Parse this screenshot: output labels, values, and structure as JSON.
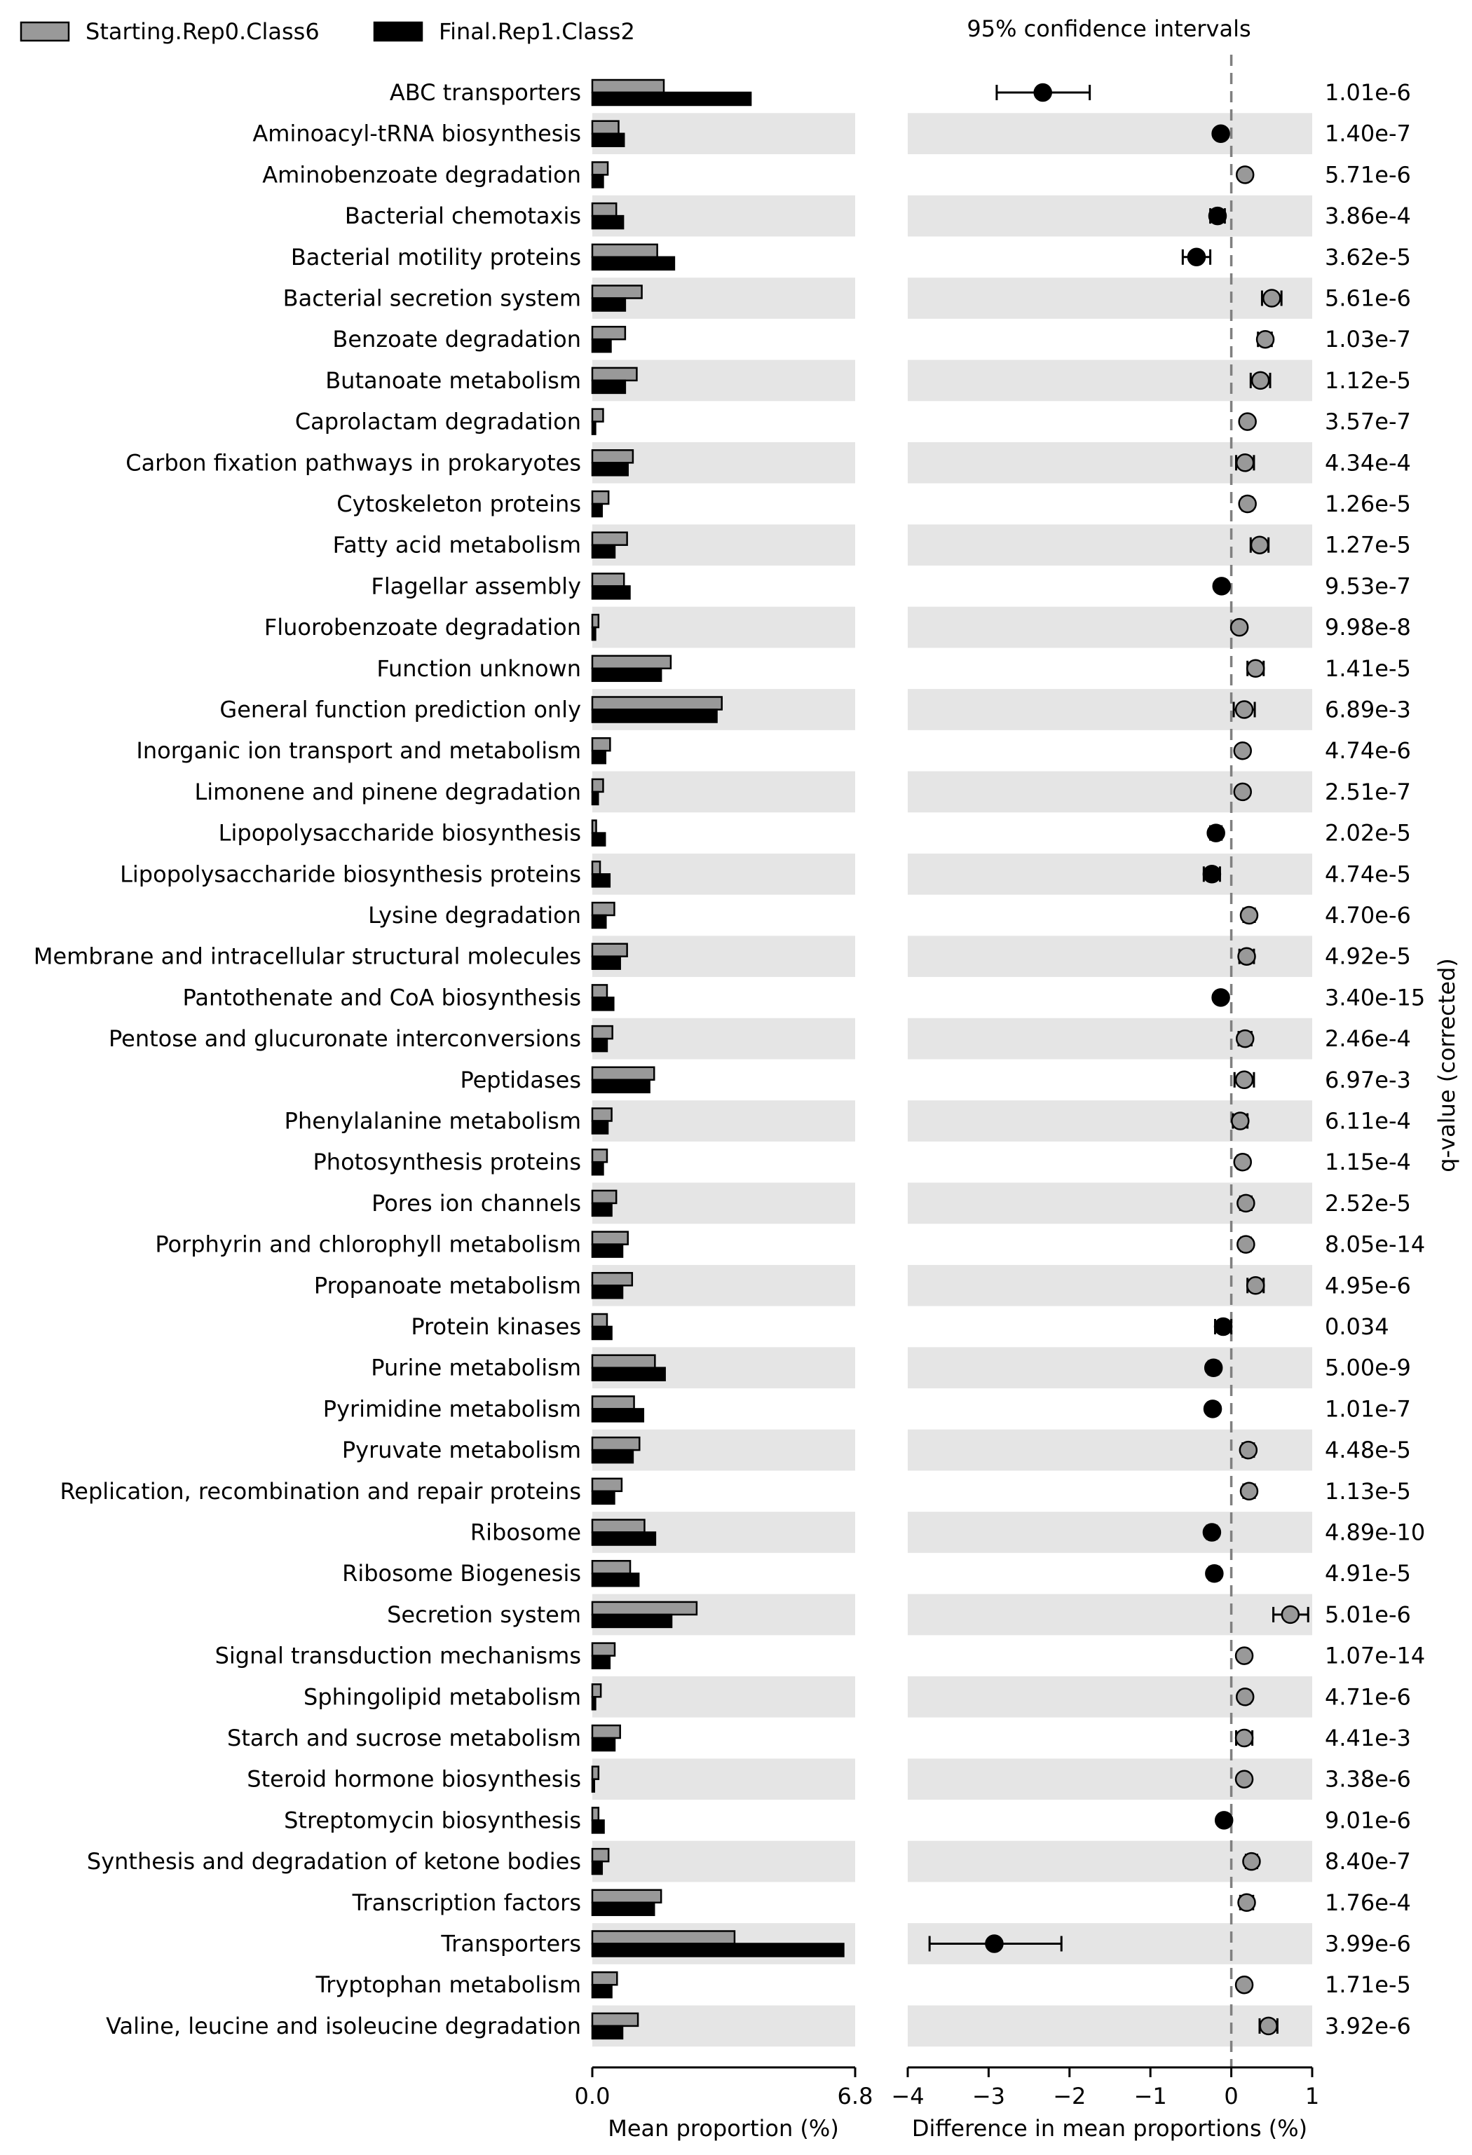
{
  "chart_data": {
    "type": "extended-error-bar",
    "legend": {
      "placement": "top-left",
      "entries": [
        {
          "name": "Starting.Rep0.Class6",
          "color": "#999999"
        },
        {
          "name": "Final.Rep1.Class2",
          "color": "#000000"
        }
      ]
    },
    "ci_title": "95% confidence intervals",
    "left_xlabel": "Mean proportion (%)",
    "right_xlabel": "Difference in mean proportions (%)",
    "qvalue_label": "q-value (corrected)",
    "left_xlim": [
      0.0,
      6.8
    ],
    "left_ticks": [
      "0.0",
      "6.8"
    ],
    "right_xlim": [
      -4,
      1
    ],
    "right_ticks": [
      -4,
      -3,
      -2,
      -1,
      0,
      1
    ],
    "right_tick_labels": [
      "−4",
      "−3",
      "−2",
      "−1",
      "0",
      "1"
    ],
    "colors": {
      "starting": "#999999",
      "final": "#000000",
      "band": "#e5e5e5",
      "zero_line": "#808080"
    },
    "categories": [
      "ABC transporters",
      "Aminoacyl-tRNA biosynthesis",
      "Aminobenzoate degradation",
      "Bacterial chemotaxis",
      "Bacterial motility proteins",
      "Bacterial secretion system",
      "Benzoate degradation",
      "Butanoate metabolism",
      "Caprolactam degradation",
      "Carbon fixation pathways in prokaryotes",
      "Cytoskeleton proteins",
      "Fatty acid metabolism",
      "Flagellar assembly",
      "Fluorobenzoate degradation",
      "Function unknown",
      "General function prediction only",
      "Inorganic ion transport and metabolism",
      "Limonene and pinene degradation",
      "Lipopolysaccharide biosynthesis",
      "Lipopolysaccharide biosynthesis proteins",
      "Lysine degradation",
      "Membrane and intracellular structural molecules",
      "Pantothenate and CoA biosynthesis",
      "Pentose and glucuronate interconversions",
      "Peptidases",
      "Phenylalanine metabolism",
      "Photosynthesis proteins",
      "Pores ion channels",
      "Porphyrin and chlorophyll metabolism",
      "Propanoate metabolism",
      "Protein kinases",
      "Purine metabolism",
      "Pyrimidine metabolism",
      "Pyruvate metabolism",
      "Replication, recombination and repair proteins",
      "Ribosome",
      "Ribosome Biogenesis",
      "Secretion system",
      "Signal transduction mechanisms",
      "Sphingolipid metabolism",
      "Starch and sucrose metabolism",
      "Steroid hormone biosynthesis",
      "Streptomycin biosynthesis",
      "Synthesis and degradation of ketone bodies",
      "Transcription factors",
      "Transporters",
      "Tryptophan metabolism",
      "Valine, leucine and isoleucine degradation"
    ],
    "series": [
      {
        "name": "Starting.Rep0.Class6",
        "values": [
          1.85,
          0.68,
          0.4,
          0.62,
          1.68,
          1.28,
          0.85,
          1.15,
          0.28,
          1.05,
          0.42,
          0.9,
          0.82,
          0.16,
          2.03,
          3.35,
          0.46,
          0.28,
          0.1,
          0.2,
          0.57,
          0.9,
          0.38,
          0.52,
          1.6,
          0.5,
          0.38,
          0.62,
          0.92,
          1.03,
          0.38,
          1.62,
          1.08,
          1.22,
          0.76,
          1.35,
          0.98,
          2.7,
          0.58,
          0.22,
          0.72,
          0.16,
          0.16,
          0.42,
          1.78,
          3.68,
          0.64,
          1.18
        ]
      },
      {
        "name": "Final.Rep1.Class2",
        "values": [
          4.1,
          0.82,
          0.28,
          0.8,
          2.12,
          0.85,
          0.48,
          0.85,
          0.08,
          0.92,
          0.25,
          0.58,
          0.97,
          0.08,
          1.78,
          3.22,
          0.34,
          0.15,
          0.33,
          0.45,
          0.35,
          0.72,
          0.55,
          0.38,
          1.48,
          0.4,
          0.28,
          0.5,
          0.78,
          0.78,
          0.5,
          1.88,
          1.32,
          1.05,
          0.57,
          1.63,
          1.2,
          2.05,
          0.45,
          0.08,
          0.58,
          0.05,
          0.3,
          0.25,
          1.6,
          6.5,
          0.5,
          0.78
        ]
      },
      {
        "name": "difference",
        "values": [
          -2.33,
          -0.13,
          0.17,
          -0.17,
          -0.43,
          0.5,
          0.42,
          0.36,
          0.2,
          0.17,
          0.2,
          0.35,
          -0.12,
          0.1,
          0.3,
          0.16,
          0.14,
          0.14,
          -0.19,
          -0.24,
          0.22,
          0.19,
          -0.13,
          0.17,
          0.16,
          0.11,
          0.14,
          0.18,
          0.18,
          0.3,
          -0.1,
          -0.22,
          -0.23,
          0.21,
          0.22,
          -0.24,
          -0.21,
          0.73,
          0.16,
          0.17,
          0.16,
          0.16,
          -0.09,
          0.25,
          0.19,
          -2.93,
          0.16,
          0.46
        ]
      }
    ],
    "ci": [
      [
        -2.9,
        -1.75
      ],
      [
        -0.17,
        -0.08
      ],
      [
        0.13,
        0.21
      ],
      [
        -0.26,
        -0.08
      ],
      [
        -0.6,
        -0.26
      ],
      [
        0.38,
        0.62
      ],
      [
        0.33,
        0.5
      ],
      [
        0.24,
        0.48
      ],
      [
        0.15,
        0.24
      ],
      [
        0.06,
        0.28
      ],
      [
        0.14,
        0.26
      ],
      [
        0.24,
        0.46
      ],
      [
        -0.16,
        -0.08
      ],
      [
        0.06,
        0.14
      ],
      [
        0.2,
        0.4
      ],
      [
        0.03,
        0.29
      ],
      [
        0.09,
        0.19
      ],
      [
        0.09,
        0.19
      ],
      [
        -0.26,
        -0.12
      ],
      [
        -0.34,
        -0.14
      ],
      [
        0.15,
        0.29
      ],
      [
        0.1,
        0.28
      ],
      [
        -0.17,
        -0.09
      ],
      [
        0.09,
        0.25
      ],
      [
        0.04,
        0.28
      ],
      [
        0.02,
        0.2
      ],
      [
        0.08,
        0.2
      ],
      [
        0.11,
        0.25
      ],
      [
        0.12,
        0.24
      ],
      [
        0.2,
        0.4
      ],
      [
        -0.2,
        0.0
      ],
      [
        -0.28,
        -0.16
      ],
      [
        -0.28,
        -0.18
      ],
      [
        0.14,
        0.28
      ],
      [
        0.15,
        0.29
      ],
      [
        -0.3,
        -0.18
      ],
      [
        -0.27,
        -0.15
      ],
      [
        0.52,
        0.95
      ],
      [
        0.11,
        0.21
      ],
      [
        0.11,
        0.23
      ],
      [
        0.06,
        0.26
      ],
      [
        0.12,
        0.2
      ],
      [
        -0.13,
        -0.05
      ],
      [
        0.18,
        0.32
      ],
      [
        0.11,
        0.27
      ],
      [
        -3.73,
        -2.1
      ],
      [
        0.11,
        0.21
      ],
      [
        0.35,
        0.57
      ]
    ],
    "qvalues": [
      "1.01e-6",
      "1.40e-7",
      "5.71e-6",
      "3.86e-4",
      "3.62e-5",
      "5.61e-6",
      "1.03e-7",
      "1.12e-5",
      "3.57e-7",
      "4.34e-4",
      "1.26e-5",
      "1.27e-5",
      "9.53e-7",
      "9.98e-8",
      "1.41e-5",
      "6.89e-3",
      "4.74e-6",
      "2.51e-7",
      "2.02e-5",
      "4.74e-5",
      "4.70e-6",
      "4.92e-5",
      "3.40e-15",
      "2.46e-4",
      "6.97e-3",
      "6.11e-4",
      "1.15e-4",
      "2.52e-5",
      "8.05e-14",
      "4.95e-6",
      "0.034",
      "5.00e-9",
      "1.01e-7",
      "4.48e-5",
      "1.13e-5",
      "4.89e-10",
      "4.91e-5",
      "5.01e-6",
      "1.07e-14",
      "4.71e-6",
      "4.41e-3",
      "3.38e-6",
      "9.01e-6",
      "8.40e-7",
      "1.76e-4",
      "3.99e-6",
      "1.71e-5",
      "3.92e-6"
    ]
  }
}
